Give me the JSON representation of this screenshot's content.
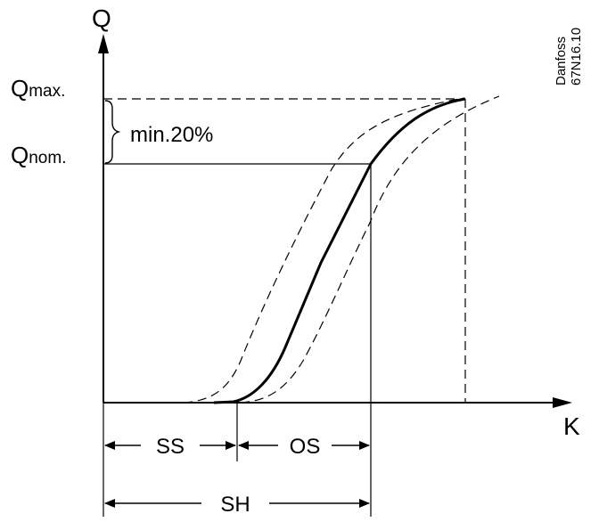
{
  "diagram": {
    "axes": {
      "y_label": "Q",
      "x_label": "K"
    },
    "levels": {
      "q_max_label": "Q",
      "q_max_sub": "max.",
      "q_nom_label": "Q",
      "q_nom_sub": "nom.",
      "gap_label": "min.20%"
    },
    "dimensions": {
      "ss": "SS",
      "os": "OS",
      "sh": "SH"
    },
    "reference": {
      "brand": "Danfoss",
      "code": "67N16.10"
    },
    "colors": {
      "line": "#000000",
      "background": "#ffffff"
    }
  }
}
